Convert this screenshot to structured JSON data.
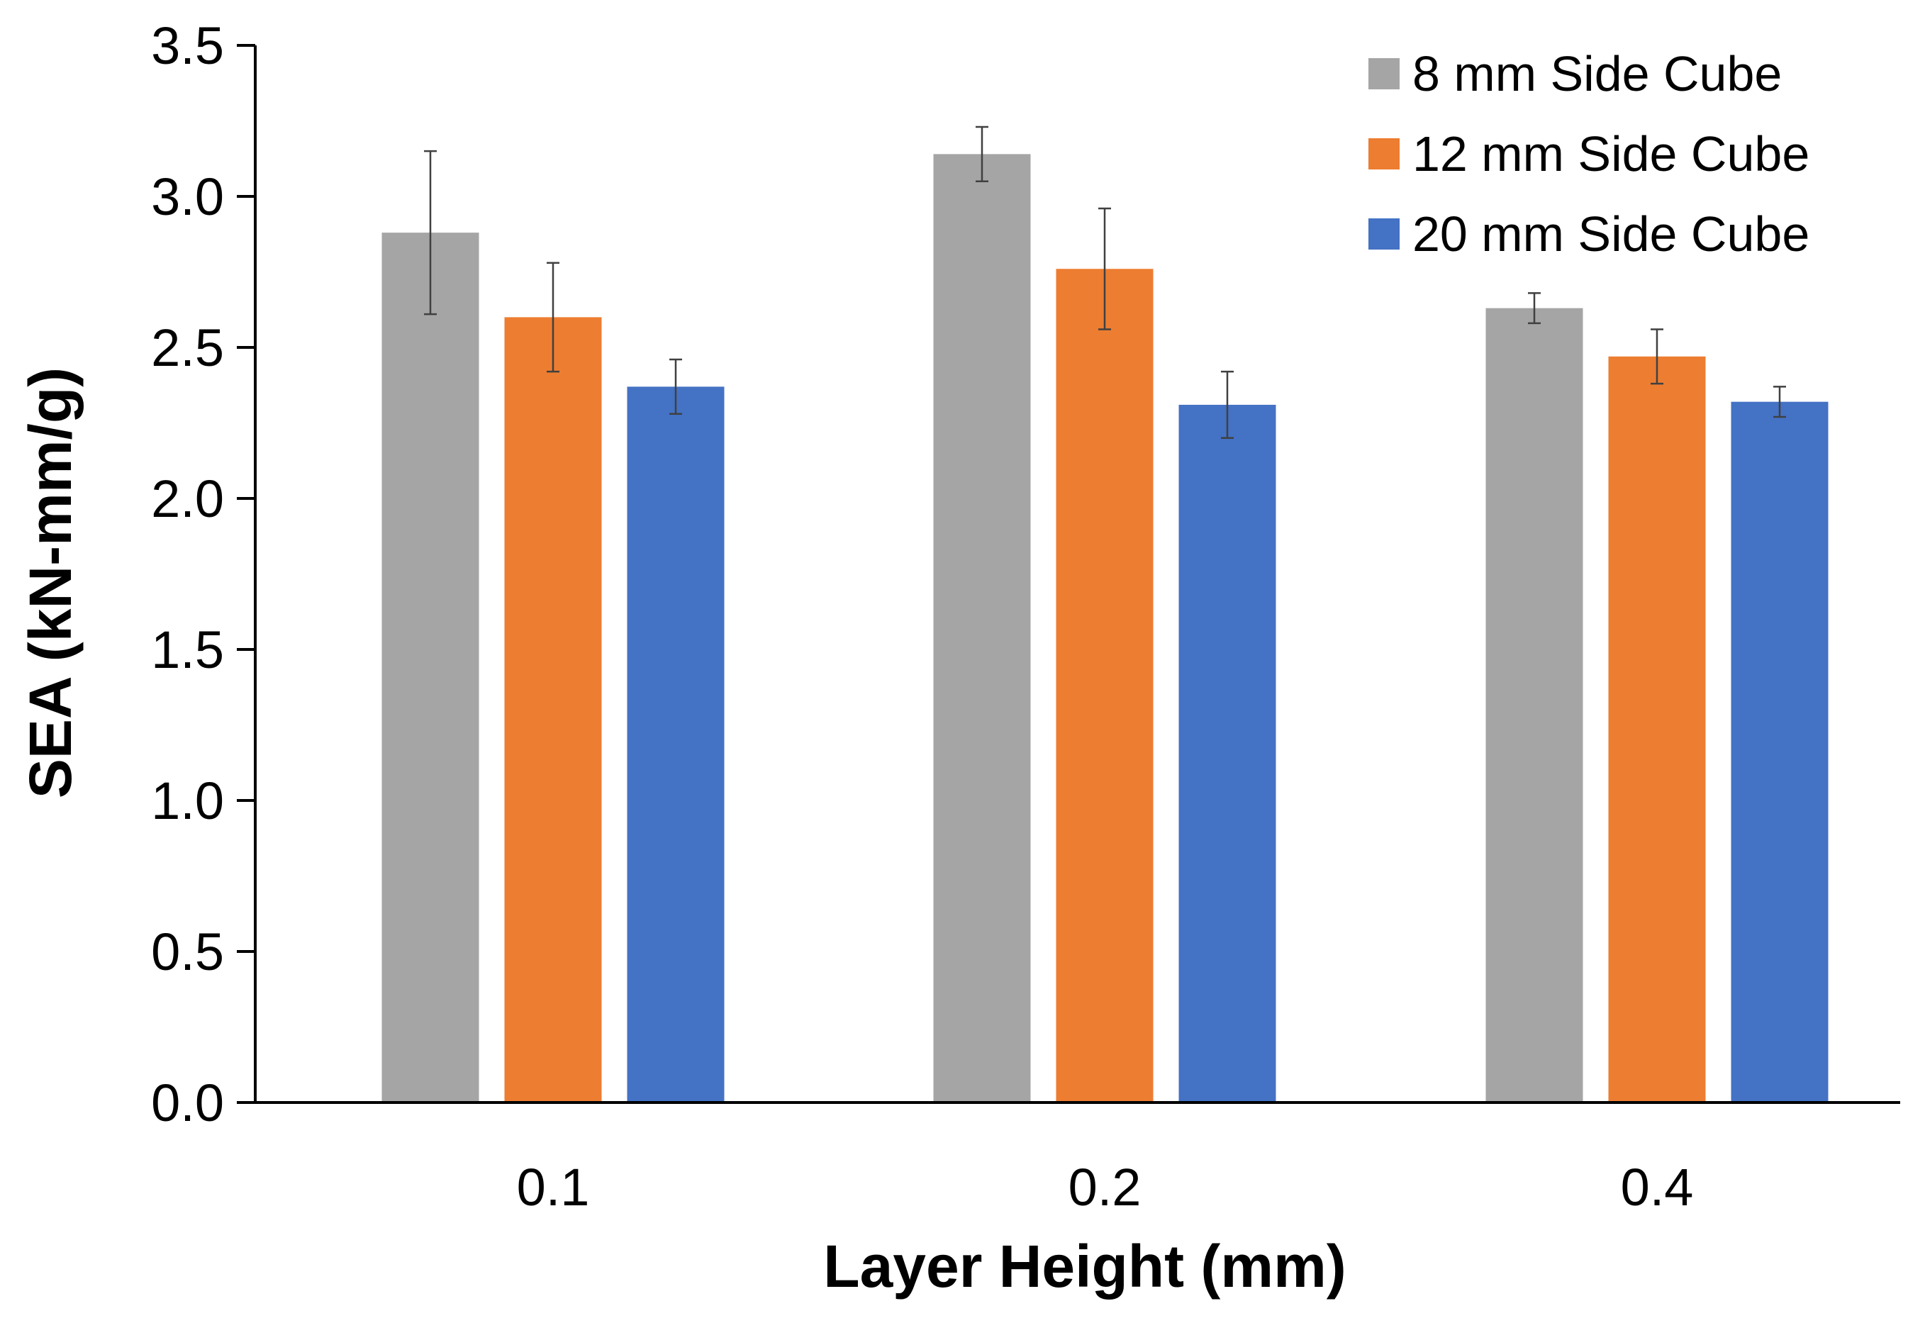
{
  "chart_data": {
    "type": "bar",
    "title": "",
    "xlabel": "Layer Height (mm)",
    "ylabel": "SEA (kN-mm/g)",
    "categories": [
      "0.1",
      "0.2",
      "0.4"
    ],
    "ylim": [
      0,
      3.5
    ],
    "yticks": [
      0.0,
      0.5,
      1.0,
      1.5,
      2.0,
      2.5,
      3.0,
      3.5
    ],
    "ytick_labels": [
      "0.0",
      "0.5",
      "1.0",
      "1.5",
      "2.0",
      "2.5",
      "3.0",
      "3.5"
    ],
    "grid": false,
    "legend_position": "top-right",
    "series": [
      {
        "name": "8 mm Side Cube",
        "color": "#A5A5A5",
        "values": [
          2.88,
          3.14,
          2.63
        ],
        "errors": [
          0.27,
          0.09,
          0.05
        ]
      },
      {
        "name": "12 mm Side Cube",
        "color": "#ED7D31",
        "values": [
          2.6,
          2.76,
          2.47
        ],
        "errors": [
          0.18,
          0.2,
          0.09
        ]
      },
      {
        "name": "20 mm Side Cube",
        "color": "#4472C4",
        "values": [
          2.37,
          2.31,
          2.32
        ],
        "errors": [
          0.09,
          0.11,
          0.05
        ]
      }
    ]
  }
}
